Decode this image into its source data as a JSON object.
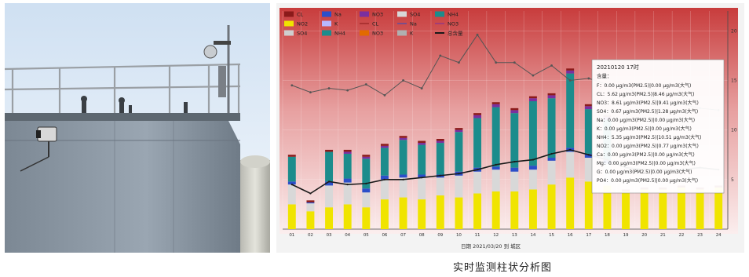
{
  "caption": "实时监测柱状分析图",
  "chart_data": {
    "type": "bar",
    "stacked": true,
    "categories": [
      "1",
      "2",
      "3",
      "4",
      "5",
      "6",
      "7",
      "8",
      "9",
      "10",
      "11",
      "12",
      "13",
      "14",
      "15",
      "16",
      "17",
      "18",
      "19",
      "20",
      "21",
      "22",
      "23",
      "24"
    ],
    "x_tick_labels": [
      "01",
      "02",
      "03",
      "04",
      "05",
      "06",
      "07",
      "08",
      "09",
      "10",
      "11",
      "12",
      "13",
      "14",
      "15",
      "16",
      "17",
      "18",
      "19",
      "20",
      "21",
      "22",
      "23",
      "24"
    ],
    "xlabel": "日期 2021/03/20 到 城区",
    "y_right_ticks": [
      "5",
      "10",
      "15",
      "20"
    ],
    "ylim": [
      0,
      22
    ],
    "grid": true,
    "legend_position": "top-left",
    "colors": {
      "CL": "#8b1a1a",
      "Na": "#2b4fc9",
      "NO3": "#7a2fa0",
      "SO4": "#d8d8d8",
      "NO2": "#f0e400",
      "K": "#b8b8ff",
      "NH4": "#1c8c8c",
      "Ca": "#d4d4d4",
      "Mg": "#b0b0b0",
      "line": "#555555",
      "total": "#1a1a1a"
    },
    "series": [
      {
        "name": "NO2",
        "values": [
          2.5,
          1.8,
          2.2,
          2.5,
          2.2,
          3.0,
          3.2,
          3.0,
          3.4,
          3.2,
          3.6,
          3.8,
          3.8,
          4.0,
          4.5,
          5.2,
          4.8,
          4.4,
          3.8,
          4.0,
          4.0,
          4.2,
          4.0,
          4.2
        ]
      },
      {
        "name": "SO4",
        "values": [
          2.0,
          0.8,
          2.2,
          2.2,
          1.5,
          2.0,
          2.0,
          2.2,
          1.8,
          2.2,
          2.2,
          2.2,
          2.0,
          2.0,
          2.4,
          2.6,
          2.4,
          2.2,
          0,
          0,
          0,
          0,
          0,
          0
        ]
      },
      {
        "name": "Na",
        "values": [
          0.3,
          0.1,
          0.4,
          0.4,
          0.4,
          0.4,
          0.3,
          0.3,
          0.3,
          0.4,
          0.4,
          0.3,
          0.4,
          0.4,
          0.3,
          0.4,
          0.4,
          0.4,
          0,
          0,
          0,
          0,
          0,
          0
        ]
      },
      {
        "name": "NH4",
        "values": [
          2.5,
          0,
          3.0,
          2.5,
          3.0,
          2.8,
          3.5,
          3.0,
          3.2,
          4.0,
          5.0,
          6.0,
          5.5,
          6.5,
          6.0,
          7.5,
          4.5,
          4.0,
          0,
          0,
          0,
          0,
          0,
          0
        ]
      },
      {
        "name": "NO3",
        "values": [
          0,
          0,
          0,
          0.2,
          0.2,
          0.2,
          0.2,
          0.2,
          0.2,
          0.2,
          0.3,
          0.3,
          0.3,
          0.3,
          0.3,
          0.3,
          0.3,
          0.3,
          0,
          0,
          0,
          0,
          0,
          0
        ]
      },
      {
        "name": "CL",
        "values": [
          0.2,
          0.2,
          0.2,
          0.2,
          0.2,
          0.2,
          0.2,
          0.2,
          0.2,
          0.2,
          0.2,
          0.2,
          0.2,
          0.2,
          0.2,
          0.2,
          0.2,
          0.2,
          0.2,
          0.2,
          0.2,
          0.2,
          0.2,
          0.2
        ]
      }
    ],
    "lines": [
      {
        "name": "SO4",
        "values": [
          14.5,
          13.8,
          14.2,
          14.0,
          14.6,
          13.5,
          15.0,
          14.2,
          17.5,
          16.8,
          19.6,
          16.8,
          16.8,
          15.5,
          16.5,
          15.0,
          15.2,
          14.6,
          14.2,
          13.5,
          12.8,
          12.6,
          12.2,
          12.0
        ]
      },
      {
        "name": "总含量",
        "values": [
          4.5,
          3.6,
          4.8,
          4.5,
          4.6,
          5.0,
          5.0,
          5.2,
          5.4,
          5.6,
          6.0,
          6.5,
          6.8,
          7.0,
          7.6,
          8.0,
          7.5,
          7.0,
          6.2,
          6.0,
          6.0,
          6.0,
          6.2,
          6.0
        ]
      }
    ],
    "legend": [
      "CL",
      "Na",
      "NO3",
      "SO4",
      "NH4",
      "NO2",
      "K",
      "CL",
      "Na",
      "NO3",
      "SO4",
      "NH4",
      "NO3",
      "K",
      "总含量"
    ],
    "tooltip": {
      "title": "20210120 17时",
      "subtitle": "含量：",
      "lines": [
        "F：0.00 μg/m3(PM2.5)|0.00 μg/m3(大气)",
        "CL：5.62 μg/m3(PM2.5)|8.46 μg/m3(大气)",
        "NO3：8.61 μg/m3(PM2.5)|9.41 μg/m3(大气)",
        "SO4：0.67 μg/m3(PM2.5)|1.28 μg/m3(大气)",
        "Na：0.00 μg/m3(PM2.5)|0.00 μg/m3(大气)",
        "K：0.00 μg/m3(PM2.5)|0.00 μg/m3(大气)",
        "NH4：5.35 μg/m3(PM2.5)|10.51 μg/m3(大气)",
        "NO2：0.00 μg/m3(PM2.5)|0.77 μg/m3(大气)",
        "Ca：0.00 μg/m3(PM2.5)|0.00 μg/m3(大气)",
        "Mg：0.00 μg/m3(PM2.5)|0.00 μg/m3(大气)",
        "G：0.00 μg/m3(PM2.5)|0.00 μg/m3(大气)",
        "PO4：0.00 μg/m3(PM2.5)|0.00 μg/m3(大气)"
      ]
    }
  }
}
